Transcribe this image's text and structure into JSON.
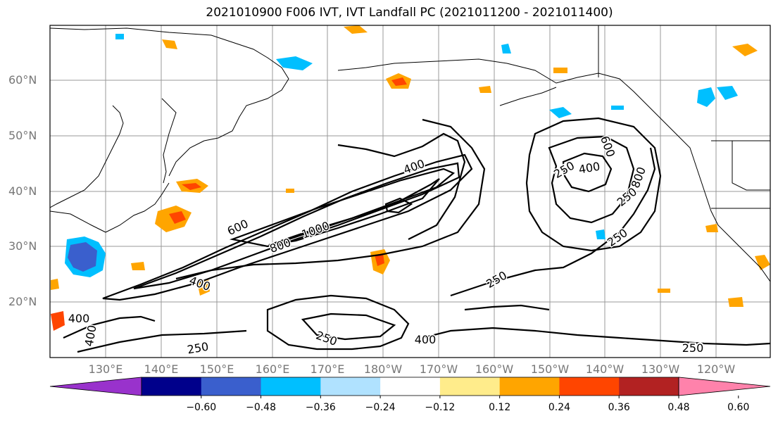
{
  "title": "2021010900 F006 IVT, IVT Landfall PC (2021011200 - 2021011400)",
  "map": {
    "lat_labels": [
      "60°N",
      "50°N",
      "40°N",
      "30°N",
      "20°N"
    ],
    "lon_labels": [
      "130°E",
      "140°E",
      "150°E",
      "160°E",
      "170°E",
      "180°W",
      "170°W",
      "160°W",
      "150°W",
      "140°W",
      "130°W",
      "120°W"
    ],
    "contour_labels": [
      "400",
      "600",
      "800",
      "1000",
      "250",
      "400",
      "600",
      "800",
      "250",
      "250",
      "250",
      "400",
      "400",
      "400",
      "250",
      "250",
      "400"
    ],
    "grid": true
  },
  "colorbar": {
    "ticks": [
      "−0.60",
      "−0.48",
      "−0.36",
      "−0.24",
      "−0.12",
      "0.12",
      "0.24",
      "0.36",
      "0.48",
      "0.60"
    ],
    "colors": [
      "#9932cc",
      "#00008b",
      "#3a5fcd",
      "#00bfff",
      "#b0e2ff",
      "#ffffff",
      "#ffec8b",
      "#ffa500",
      "#ff4500",
      "#b22222",
      "#ff82ab"
    ]
  }
}
